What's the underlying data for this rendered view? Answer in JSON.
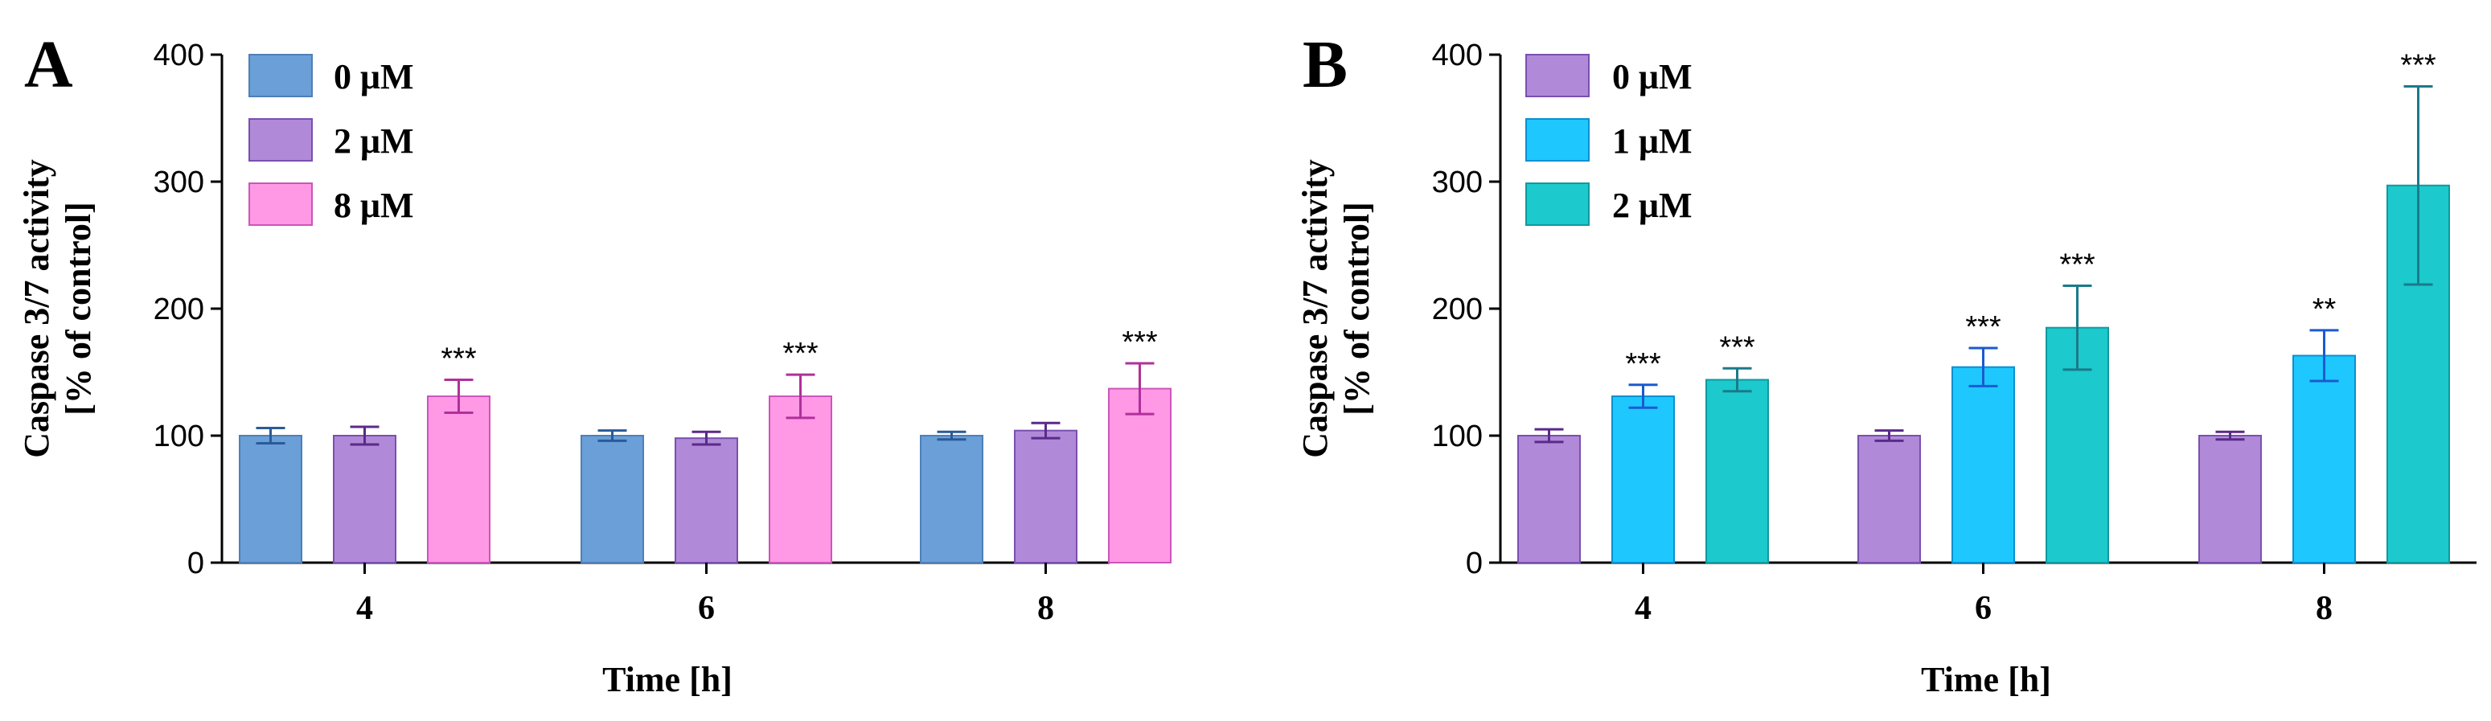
{
  "chart_data": [
    {
      "panel": "A",
      "type": "bar",
      "xlabel": "Time [h]",
      "ylabel_line1": "Caspase 3/7 activity",
      "ylabel_line2": "[% of control]",
      "ylim": [
        0,
        400
      ],
      "yticks": [
        "0",
        "100",
        "200",
        "300",
        "400"
      ],
      "categories": [
        "4",
        "6",
        "8"
      ],
      "series": [
        {
          "name": "0  μM",
          "color": "#6a9fd8",
          "edge": "#4f7fb8",
          "err_color": "#2a5a9a",
          "values": [
            100,
            100,
            100
          ],
          "errors": [
            6,
            4,
            3
          ],
          "sig": [
            "",
            "",
            ""
          ]
        },
        {
          "name": "2  μM",
          "color": "#b08ad8",
          "edge": "#7a4fb0",
          "err_color": "#5a2a8a",
          "values": [
            100,
            98,
            104
          ],
          "errors": [
            7,
            5,
            6
          ],
          "sig": [
            "",
            "",
            ""
          ]
        },
        {
          "name": "8  μM",
          "color": "#ff99e6",
          "edge": "#cc55bb",
          "err_color": "#b0309a",
          "values": [
            131,
            131,
            137
          ],
          "errors": [
            13,
            17,
            20
          ],
          "sig": [
            "***",
            "***",
            "***"
          ]
        }
      ]
    },
    {
      "panel": "B",
      "type": "bar",
      "xlabel": "Time [h]",
      "ylabel_line1": "Caspase 3/7 activity",
      "ylabel_line2": "[% of control]",
      "ylim": [
        0,
        400
      ],
      "yticks": [
        "0",
        "100",
        "200",
        "300",
        "400"
      ],
      "categories": [
        "4",
        "6",
        "8"
      ],
      "series": [
        {
          "name": "0  μM",
          "color": "#b08ad8",
          "edge": "#7a4fb0",
          "err_color": "#5a2a8a",
          "values": [
            100,
            100,
            100
          ],
          "errors": [
            5,
            4,
            3
          ],
          "sig": [
            "",
            "",
            ""
          ]
        },
        {
          "name": "1  μM",
          "color": "#1ec8ff",
          "edge": "#0a90d0",
          "err_color": "#1a5ad0",
          "values": [
            131,
            154,
            163
          ],
          "errors": [
            9,
            15,
            20
          ],
          "sig": [
            "***",
            "***",
            "**"
          ]
        },
        {
          "name": "2  μM",
          "color": "#1cc9cc",
          "edge": "#0e9aa0",
          "err_color": "#1a7a8a",
          "values": [
            144,
            185,
            297
          ],
          "errors": [
            9,
            33,
            78
          ],
          "sig": [
            "***",
            "***",
            "***"
          ]
        }
      ]
    }
  ]
}
